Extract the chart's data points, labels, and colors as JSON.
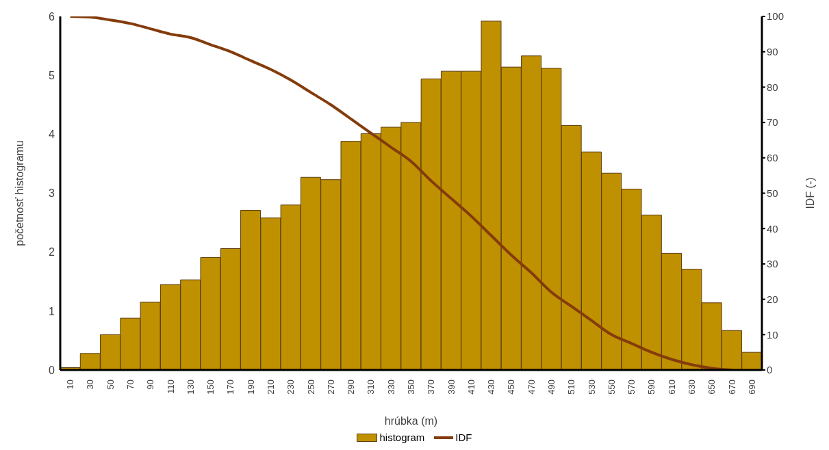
{
  "chart_data": {
    "type": "bar",
    "xlabel": "hrúbka (m)",
    "ylabel": "početnosť histogramu",
    "y2label": "IDF (-)",
    "categories": [
      "10",
      "30",
      "50",
      "70",
      "90",
      "110",
      "130",
      "150",
      "170",
      "190",
      "210",
      "230",
      "250",
      "270",
      "290",
      "310",
      "330",
      "350",
      "370",
      "390",
      "410",
      "430",
      "450",
      "470",
      "490",
      "510",
      "530",
      "550",
      "570",
      "590",
      "610",
      "630",
      "650",
      "670",
      "690"
    ],
    "series": [
      {
        "name": "histogram",
        "color": "#bf9000",
        "values": [
          0.04,
          0.28,
          0.6,
          0.88,
          1.15,
          1.45,
          1.53,
          1.91,
          2.06,
          2.71,
          2.58,
          2.8,
          3.27,
          3.23,
          3.88,
          4.01,
          4.12,
          4.2,
          4.94,
          5.07,
          5.07,
          5.92,
          5.14,
          5.33,
          5.12,
          4.15,
          3.7,
          3.34,
          3.07,
          2.63,
          1.98,
          1.71,
          1.14,
          0.67,
          0.3
        ]
      },
      {
        "name": "IDF",
        "type": "line",
        "axis": "y2",
        "color": "#843c0c",
        "values": [
          100,
          99.8,
          99,
          98,
          96.5,
          95,
          94,
          92,
          90,
          87.5,
          85,
          82,
          78.5,
          75,
          71,
          67,
          63,
          59,
          53.5,
          48.5,
          43.5,
          38,
          32.5,
          27.5,
          22,
          18,
          14,
          10,
          7.5,
          5,
          3,
          1.5,
          0.5,
          0,
          null
        ]
      }
    ],
    "ylim": [
      0,
      6
    ],
    "yticks": [
      0,
      1,
      2,
      3,
      4,
      5,
      6
    ],
    "y2lim": [
      0,
      100
    ],
    "y2ticks": [
      0,
      10,
      20,
      30,
      40,
      50,
      60,
      70,
      80,
      90,
      100
    ],
    "grid": false,
    "legend": "bottom",
    "marker": "none"
  }
}
